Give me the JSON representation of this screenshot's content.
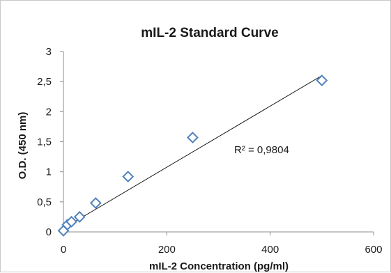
{
  "chart_data": {
    "type": "scatter",
    "title": "mIL-2 Standard Curve",
    "xlabel": "mIL-2 Concentration (pg/ml)",
    "ylabel": "O.D. (450 nm)",
    "xlim": [
      0,
      600
    ],
    "ylim": [
      0,
      3
    ],
    "x_ticks": [
      0,
      200,
      400,
      600
    ],
    "y_ticks": [
      0,
      0.5,
      1,
      1.5,
      2,
      2.5,
      3
    ],
    "x_tick_labels": [
      "0",
      "200",
      "400",
      "600"
    ],
    "y_tick_labels": [
      "0",
      "0,5",
      "1",
      "1,5",
      "2",
      "2,5",
      "3"
    ],
    "grid": false,
    "legend": "none",
    "series": [
      {
        "marker": "diamond",
        "color": "#4f81bd",
        "x": [
          0,
          7.8,
          15.6,
          31.3,
          62.5,
          125,
          250,
          500
        ],
        "y": [
          0.02,
          0.12,
          0.17,
          0.25,
          0.48,
          0.92,
          1.57,
          2.52
        ]
      }
    ],
    "trendline": {
      "type": "linear",
      "color": "#1a1a1a",
      "x_start": 0,
      "y_start": 0.06,
      "x_end": 500,
      "y_end": 2.6
    },
    "annotation": "R² = 0,9804"
  }
}
